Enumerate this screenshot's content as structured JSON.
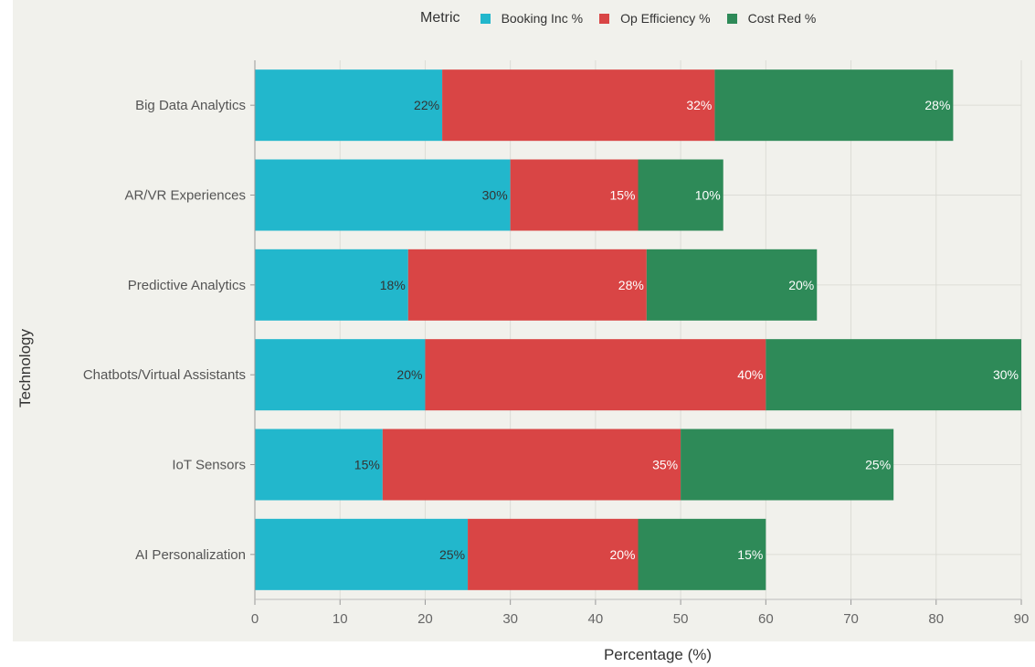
{
  "chart_data": {
    "type": "bar",
    "orientation": "horizontal",
    "stacked": true,
    "categories": [
      "Big Data Analytics",
      "AR/VR Experiences",
      "Predictive Analytics",
      "Chatbots/Virtual Assistants",
      "IoT Sensors",
      "AI Personalization"
    ],
    "series": [
      {
        "name": "Booking Inc %",
        "color": "#22b7cc",
        "values": [
          22,
          30,
          18,
          20,
          15,
          25
        ],
        "labels": [
          "22%",
          "30%",
          "18%",
          "20%",
          "15%",
          "25%"
        ],
        "label_color": "#333333"
      },
      {
        "name": "Op Efficiency %",
        "color": "#d94545",
        "values": [
          32,
          15,
          28,
          40,
          35,
          20
        ],
        "labels": [
          "32%",
          "15%",
          "28%",
          "40%",
          "35%",
          "20%"
        ],
        "label_color": "#ffffff"
      },
      {
        "name": "Cost Red %",
        "color": "#2e8a58",
        "values": [
          28,
          10,
          20,
          30,
          25,
          15
        ],
        "labels": [
          "28%",
          "10%",
          "20%",
          "30%",
          "25%",
          "15%"
        ],
        "label_color": "#ffffff"
      }
    ],
    "xlim": [
      0,
      90
    ],
    "xticks": [
      "0",
      "10",
      "20",
      "30",
      "40",
      "50",
      "60",
      "70",
      "80",
      "90"
    ],
    "xlabel": "Percentage (%)",
    "ylabel": "Technology",
    "legend_title": "Metric",
    "legend_position": "top",
    "grid": true
  }
}
